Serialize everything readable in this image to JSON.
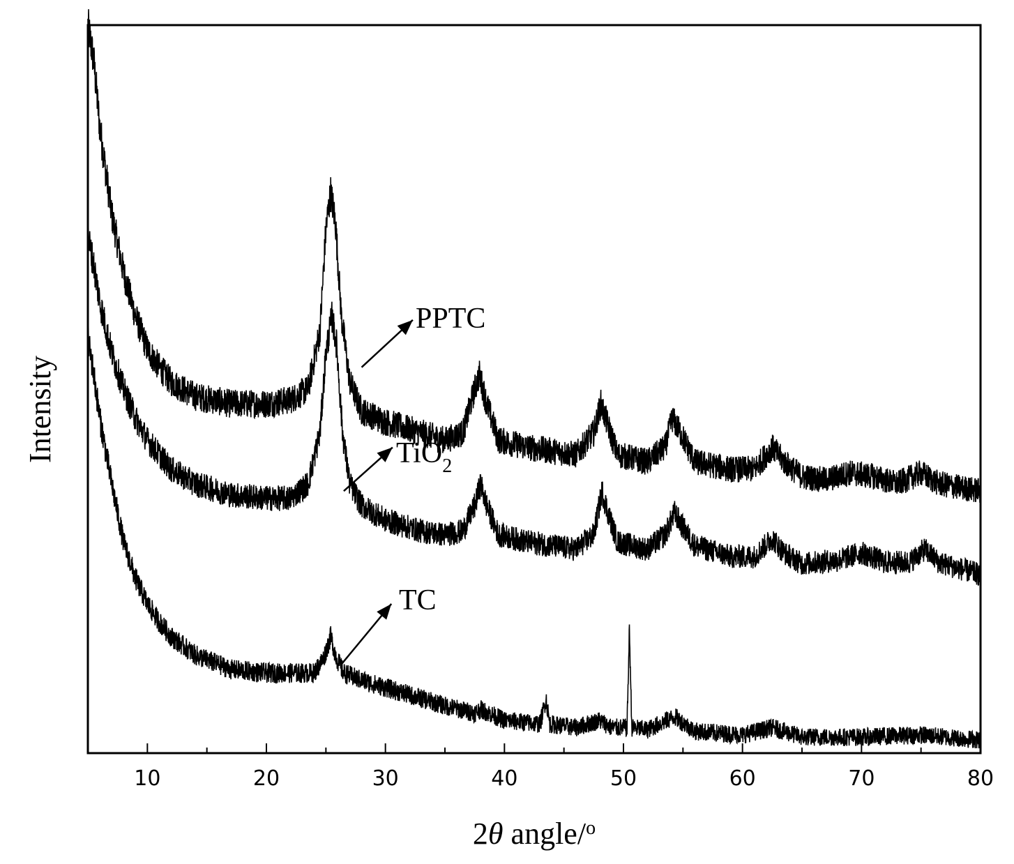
{
  "chart_data": {
    "type": "line",
    "title": "",
    "xlabel": {
      "prefix": "2",
      "symbol": "θ",
      "rest": " angle/",
      "degree": "o"
    },
    "ylabel": "Intensity",
    "xlim": [
      5,
      80
    ],
    "xticks": [
      10,
      20,
      30,
      40,
      50,
      60,
      70,
      80
    ],
    "yticks_shown": false,
    "grid": false,
    "legend": "none",
    "series": [
      {
        "name": "PPTC",
        "label_parts": {
          "main": "PPTC",
          "sub": ""
        },
        "color": "#000000",
        "points": [
          [
            5,
            1.0
          ],
          [
            5.5,
            0.95
          ],
          [
            6,
            0.86
          ],
          [
            7,
            0.74
          ],
          [
            8,
            0.66
          ],
          [
            9,
            0.6
          ],
          [
            10,
            0.555
          ],
          [
            11,
            0.53
          ],
          [
            12,
            0.51
          ],
          [
            14,
            0.49
          ],
          [
            17,
            0.48
          ],
          [
            20,
            0.48
          ],
          [
            22,
            0.485
          ],
          [
            23.5,
            0.5
          ],
          [
            24.5,
            0.58
          ],
          [
            25.0,
            0.72
          ],
          [
            25.4,
            0.77
          ],
          [
            25.8,
            0.73
          ],
          [
            26.3,
            0.6
          ],
          [
            27,
            0.51
          ],
          [
            28,
            0.47
          ],
          [
            30,
            0.455
          ],
          [
            33,
            0.44
          ],
          [
            35,
            0.43
          ],
          [
            36.5,
            0.44
          ],
          [
            37.5,
            0.5
          ],
          [
            37.9,
            0.52
          ],
          [
            38.5,
            0.48
          ],
          [
            39.5,
            0.43
          ],
          [
            42,
            0.42
          ],
          [
            46,
            0.41
          ],
          [
            47.5,
            0.44
          ],
          [
            48.1,
            0.48
          ],
          [
            48.7,
            0.45
          ],
          [
            49.5,
            0.41
          ],
          [
            52,
            0.4
          ],
          [
            53.5,
            0.42
          ],
          [
            54.1,
            0.46
          ],
          [
            54.8,
            0.44
          ],
          [
            56,
            0.4
          ],
          [
            59,
            0.39
          ],
          [
            61,
            0.39
          ],
          [
            62.5,
            0.42
          ],
          [
            63.5,
            0.4
          ],
          [
            65,
            0.38
          ],
          [
            67,
            0.375
          ],
          [
            69,
            0.385
          ],
          [
            71,
            0.38
          ],
          [
            73,
            0.37
          ],
          [
            75,
            0.385
          ],
          [
            76.5,
            0.37
          ],
          [
            80,
            0.36
          ]
        ]
      },
      {
        "name": "TiO2",
        "label_parts": {
          "main": "TiO",
          "sub": "2"
        },
        "color": "#000000",
        "points": [
          [
            5,
            0.71
          ],
          [
            5.5,
            0.67
          ],
          [
            6,
            0.62
          ],
          [
            7,
            0.55
          ],
          [
            8,
            0.5
          ],
          [
            9,
            0.46
          ],
          [
            10,
            0.43
          ],
          [
            11,
            0.41
          ],
          [
            12,
            0.39
          ],
          [
            14,
            0.37
          ],
          [
            17,
            0.355
          ],
          [
            20,
            0.35
          ],
          [
            22,
            0.35
          ],
          [
            23.5,
            0.37
          ],
          [
            24.5,
            0.44
          ],
          [
            25.0,
            0.55
          ],
          [
            25.5,
            0.6
          ],
          [
            25.9,
            0.56
          ],
          [
            26.4,
            0.44
          ],
          [
            27,
            0.37
          ],
          [
            28,
            0.34
          ],
          [
            30,
            0.32
          ],
          [
            33,
            0.305
          ],
          [
            35,
            0.3
          ],
          [
            36.5,
            0.305
          ],
          [
            37.5,
            0.34
          ],
          [
            38,
            0.37
          ],
          [
            38.5,
            0.34
          ],
          [
            39.5,
            0.3
          ],
          [
            42,
            0.29
          ],
          [
            46,
            0.28
          ],
          [
            47.5,
            0.3
          ],
          [
            48.2,
            0.36
          ],
          [
            48.7,
            0.33
          ],
          [
            49.5,
            0.29
          ],
          [
            52,
            0.28
          ],
          [
            53.5,
            0.3
          ],
          [
            54.3,
            0.33
          ],
          [
            55,
            0.31
          ],
          [
            56,
            0.285
          ],
          [
            59,
            0.27
          ],
          [
            61,
            0.27
          ],
          [
            62.5,
            0.295
          ],
          [
            63.5,
            0.275
          ],
          [
            65,
            0.26
          ],
          [
            68,
            0.265
          ],
          [
            70,
            0.275
          ],
          [
            72,
            0.262
          ],
          [
            74,
            0.262
          ],
          [
            75.3,
            0.28
          ],
          [
            76.5,
            0.262
          ],
          [
            80,
            0.245
          ]
        ]
      },
      {
        "name": "TC",
        "label_parts": {
          "main": "TC",
          "sub": ""
        },
        "color": "#000000",
        "points": [
          [
            5,
            0.57
          ],
          [
            5.5,
            0.52
          ],
          [
            6,
            0.46
          ],
          [
            7,
            0.37
          ],
          [
            8,
            0.29
          ],
          [
            9,
            0.24
          ],
          [
            10,
            0.205
          ],
          [
            11,
            0.18
          ],
          [
            12,
            0.16
          ],
          [
            14,
            0.135
          ],
          [
            17,
            0.115
          ],
          [
            20,
            0.11
          ],
          [
            22,
            0.11
          ],
          [
            24,
            0.11
          ],
          [
            24.8,
            0.13
          ],
          [
            25.4,
            0.16
          ],
          [
            25.9,
            0.13
          ],
          [
            26.5,
            0.11
          ],
          [
            28,
            0.1
          ],
          [
            30,
            0.09
          ],
          [
            33,
            0.075
          ],
          [
            35,
            0.065
          ],
          [
            37.5,
            0.055
          ],
          [
            38,
            0.06
          ],
          [
            40,
            0.045
          ],
          [
            43,
            0.04
          ],
          [
            43.5,
            0.075
          ],
          [
            43.8,
            0.04
          ],
          [
            46,
            0.035
          ],
          [
            48,
            0.045
          ],
          [
            49,
            0.035
          ],
          [
            50.3,
            0.035
          ],
          [
            50.5,
            0.17
          ],
          [
            50.7,
            0.035
          ],
          [
            52,
            0.032
          ],
          [
            54.3,
            0.05
          ],
          [
            56,
            0.03
          ],
          [
            60,
            0.025
          ],
          [
            62.5,
            0.035
          ],
          [
            65,
            0.022
          ],
          [
            70,
            0.022
          ],
          [
            75,
            0.025
          ],
          [
            80,
            0.018
          ]
        ]
      }
    ]
  }
}
